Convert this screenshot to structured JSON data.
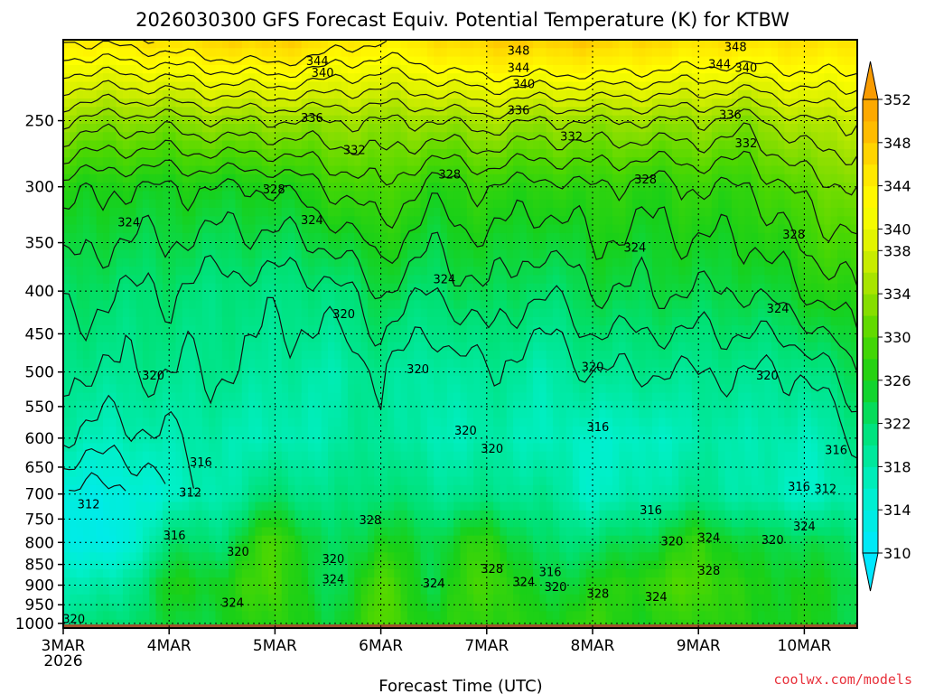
{
  "chart_data": {
    "type": "heatmap",
    "title": "2026030300 GFS Forecast Equiv. Potential Temperature (K) for KTBW",
    "xlabel": "Forecast Time (UTC)",
    "credit": "coolwx.com/models",
    "xlim": [
      0,
      7.5
    ],
    "x_ticks": [
      {
        "x": 0,
        "label": "3MAR",
        "sublabel": "2026"
      },
      {
        "x": 1,
        "label": "4MAR"
      },
      {
        "x": 2,
        "label": "5MAR"
      },
      {
        "x": 3,
        "label": "6MAR"
      },
      {
        "x": 4,
        "label": "7MAR"
      },
      {
        "x": 5,
        "label": "8MAR"
      },
      {
        "x": 6,
        "label": "9MAR"
      },
      {
        "x": 7,
        "label": "10MAR"
      }
    ],
    "ylim": [
      1013,
      200
    ],
    "y_scale": "log",
    "y_ticks": [
      250,
      300,
      350,
      400,
      450,
      500,
      550,
      600,
      650,
      700,
      750,
      800,
      850,
      900,
      950,
      1000
    ],
    "grid": true,
    "colorbar": {
      "levels": [
        310,
        312,
        314,
        316,
        318,
        320,
        322,
        324,
        326,
        328,
        330,
        332,
        334,
        336,
        338,
        340,
        342,
        344,
        346,
        348,
        350,
        352
      ],
      "labels": [
        310,
        314,
        318,
        322,
        326,
        330,
        334,
        338,
        340,
        344,
        348,
        352
      ],
      "colors": {
        "310": "#00e8ff",
        "316": "#00f0c8",
        "322": "#00e070",
        "326": "#18d018",
        "330": "#50d800",
        "334": "#98e000",
        "338": "#d8f000",
        "342": "#ffff00",
        "346": "#ffe000",
        "350": "#ffb000",
        "354": "#f59400"
      }
    },
    "profiles": [
      {
        "x": 0.0,
        "points": [
          [
            1000,
            320
          ],
          [
            900,
            318
          ],
          [
            800,
            314
          ],
          [
            700,
            314
          ],
          [
            600,
            318
          ],
          [
            500,
            320
          ],
          [
            400,
            323
          ],
          [
            300,
            327
          ],
          [
            250,
            334
          ],
          [
            200,
            344
          ]
        ]
      },
      {
        "x": 0.5,
        "points": [
          [
            1000,
            322
          ],
          [
            900,
            318
          ],
          [
            800,
            312
          ],
          [
            700,
            313
          ],
          [
            600,
            317
          ],
          [
            500,
            320
          ],
          [
            400,
            322
          ],
          [
            300,
            326
          ],
          [
            250,
            333
          ],
          [
            200,
            345
          ]
        ]
      },
      {
        "x": 1.0,
        "points": [
          [
            1000,
            324
          ],
          [
            900,
            326
          ],
          [
            800,
            322
          ],
          [
            700,
            316
          ],
          [
            600,
            318
          ],
          [
            500,
            320
          ],
          [
            400,
            322
          ],
          [
            300,
            326
          ],
          [
            250,
            333
          ],
          [
            200,
            346
          ]
        ]
      },
      {
        "x": 1.5,
        "points": [
          [
            1000,
            325
          ],
          [
            900,
            326
          ],
          [
            800,
            322
          ],
          [
            700,
            318
          ],
          [
            600,
            318
          ],
          [
            500,
            320
          ],
          [
            400,
            321
          ],
          [
            300,
            326
          ],
          [
            250,
            334
          ],
          [
            200,
            347
          ]
        ]
      },
      {
        "x": 2.0,
        "points": [
          [
            1000,
            328
          ],
          [
            900,
            330
          ],
          [
            800,
            330
          ],
          [
            700,
            322
          ],
          [
            600,
            317
          ],
          [
            500,
            319
          ],
          [
            400,
            321
          ],
          [
            300,
            326
          ],
          [
            250,
            334
          ],
          [
            200,
            348
          ]
        ]
      },
      {
        "x": 2.5,
        "points": [
          [
            1000,
            324
          ],
          [
            900,
            322
          ],
          [
            800,
            322
          ],
          [
            700,
            320
          ],
          [
            600,
            318
          ],
          [
            500,
            318
          ],
          [
            400,
            321
          ],
          [
            300,
            328
          ],
          [
            250,
            334
          ],
          [
            200,
            346
          ]
        ]
      },
      {
        "x": 3.0,
        "points": [
          [
            1000,
            330
          ],
          [
            900,
            330
          ],
          [
            800,
            326
          ],
          [
            700,
            322
          ],
          [
            600,
            320
          ],
          [
            500,
            320
          ],
          [
            400,
            324
          ],
          [
            300,
            330
          ],
          [
            250,
            334
          ],
          [
            200,
            344
          ]
        ]
      },
      {
        "x": 3.5,
        "points": [
          [
            1000,
            326
          ],
          [
            900,
            324
          ],
          [
            800,
            324
          ],
          [
            700,
            320
          ],
          [
            600,
            317
          ],
          [
            500,
            318
          ],
          [
            400,
            322
          ],
          [
            300,
            327
          ],
          [
            250,
            334
          ],
          [
            200,
            346
          ]
        ]
      },
      {
        "x": 4.0,
        "points": [
          [
            1000,
            328
          ],
          [
            900,
            330
          ],
          [
            800,
            328
          ],
          [
            700,
            320
          ],
          [
            600,
            318
          ],
          [
            500,
            320
          ],
          [
            400,
            324
          ],
          [
            300,
            328
          ],
          [
            250,
            335
          ],
          [
            200,
            348
          ]
        ]
      },
      {
        "x": 4.5,
        "points": [
          [
            1000,
            326
          ],
          [
            900,
            324
          ],
          [
            800,
            322
          ],
          [
            700,
            320
          ],
          [
            600,
            317
          ],
          [
            500,
            318
          ],
          [
            400,
            322
          ],
          [
            300,
            327
          ],
          [
            250,
            334
          ],
          [
            200,
            348
          ]
        ]
      },
      {
        "x": 5.0,
        "points": [
          [
            1000,
            328
          ],
          [
            900,
            326
          ],
          [
            800,
            322
          ],
          [
            700,
            316
          ],
          [
            600,
            316
          ],
          [
            500,
            320
          ],
          [
            400,
            324
          ],
          [
            300,
            328
          ],
          [
            250,
            334
          ],
          [
            200,
            348
          ]
        ]
      },
      {
        "x": 5.5,
        "points": [
          [
            1000,
            326
          ],
          [
            900,
            328
          ],
          [
            800,
            324
          ],
          [
            700,
            318
          ],
          [
            600,
            316
          ],
          [
            500,
            320
          ],
          [
            400,
            324
          ],
          [
            300,
            327
          ],
          [
            250,
            334
          ],
          [
            200,
            347
          ]
        ]
      },
      {
        "x": 6.0,
        "points": [
          [
            1000,
            328
          ],
          [
            900,
            330
          ],
          [
            800,
            328
          ],
          [
            700,
            320
          ],
          [
            600,
            318
          ],
          [
            500,
            320
          ],
          [
            400,
            324
          ],
          [
            300,
            328
          ],
          [
            250,
            334
          ],
          [
            200,
            346
          ]
        ]
      },
      {
        "x": 6.5,
        "points": [
          [
            1000,
            326
          ],
          [
            900,
            326
          ],
          [
            800,
            324
          ],
          [
            700,
            318
          ],
          [
            600,
            318
          ],
          [
            500,
            320
          ],
          [
            400,
            324
          ],
          [
            300,
            328
          ],
          [
            250,
            333
          ],
          [
            200,
            346
          ]
        ]
      },
      {
        "x": 7.0,
        "points": [
          [
            1000,
            326
          ],
          [
            900,
            326
          ],
          [
            800,
            324
          ],
          [
            700,
            316
          ],
          [
            600,
            317
          ],
          [
            500,
            320
          ],
          [
            400,
            326
          ],
          [
            300,
            331
          ],
          [
            250,
            336
          ],
          [
            200,
            346
          ]
        ]
      },
      {
        "x": 7.5,
        "points": [
          [
            1000,
            324
          ],
          [
            900,
            324
          ],
          [
            800,
            322
          ],
          [
            700,
            318
          ],
          [
            600,
            320
          ],
          [
            500,
            324
          ],
          [
            400,
            328
          ],
          [
            300,
            332
          ],
          [
            250,
            336
          ],
          [
            200,
            346
          ]
        ]
      }
    ],
    "contour_labels": [
      {
        "value": "348",
        "x": 4.3,
        "p": 206
      },
      {
        "value": "348",
        "x": 6.35,
        "p": 204
      },
      {
        "value": "344",
        "x": 2.4,
        "p": 212
      },
      {
        "value": "344",
        "x": 4.3,
        "p": 216
      },
      {
        "value": "344",
        "x": 6.2,
        "p": 214
      },
      {
        "value": "340",
        "x": 2.45,
        "p": 219
      },
      {
        "value": "340",
        "x": 4.35,
        "p": 226
      },
      {
        "value": "340",
        "x": 6.45,
        "p": 216
      },
      {
        "value": "336",
        "x": 2.35,
        "p": 248
      },
      {
        "value": "336",
        "x": 4.3,
        "p": 243
      },
      {
        "value": "336",
        "x": 6.3,
        "p": 246
      },
      {
        "value": "332",
        "x": 2.75,
        "p": 271
      },
      {
        "value": "332",
        "x": 4.8,
        "p": 261
      },
      {
        "value": "332",
        "x": 6.45,
        "p": 266
      },
      {
        "value": "328",
        "x": 1.99,
        "p": 302
      },
      {
        "value": "328",
        "x": 3.65,
        "p": 290
      },
      {
        "value": "328",
        "x": 5.5,
        "p": 294
      },
      {
        "value": "328",
        "x": 6.9,
        "p": 342
      },
      {
        "value": "324",
        "x": 0.62,
        "p": 331
      },
      {
        "value": "324",
        "x": 2.35,
        "p": 329
      },
      {
        "value": "324",
        "x": 3.6,
        "p": 387
      },
      {
        "value": "324",
        "x": 5.4,
        "p": 355
      },
      {
        "value": "324",
        "x": 6.75,
        "p": 420
      },
      {
        "value": "320",
        "x": 2.65,
        "p": 426
      },
      {
        "value": "320",
        "x": 0.85,
        "p": 505
      },
      {
        "value": "320",
        "x": 3.35,
        "p": 496
      },
      {
        "value": "320",
        "x": 5.0,
        "p": 493
      },
      {
        "value": "320",
        "x": 6.65,
        "p": 505
      },
      {
        "value": "320",
        "x": 3.8,
        "p": 588
      },
      {
        "value": "316",
        "x": 1.3,
        "p": 641
      },
      {
        "value": "316",
        "x": 5.05,
        "p": 582
      },
      {
        "value": "316",
        "x": 7.3,
        "p": 620
      },
      {
        "value": "316",
        "x": 6.95,
        "p": 686
      },
      {
        "value": "312",
        "x": 7.2,
        "p": 690
      },
      {
        "value": "312",
        "x": 1.2,
        "p": 697
      },
      {
        "value": "312",
        "x": 0.24,
        "p": 720
      },
      {
        "value": "316",
        "x": 1.05,
        "p": 785
      },
      {
        "value": "316",
        "x": 5.55,
        "p": 732
      },
      {
        "value": "328",
        "x": 2.9,
        "p": 752
      },
      {
        "value": "320",
        "x": 1.65,
        "p": 821
      },
      {
        "value": "320",
        "x": 2.55,
        "p": 837
      },
      {
        "value": "324",
        "x": 2.55,
        "p": 885
      },
      {
        "value": "324",
        "x": 1.6,
        "p": 945
      },
      {
        "value": "324",
        "x": 3.5,
        "p": 895
      },
      {
        "value": "328",
        "x": 4.05,
        "p": 860
      },
      {
        "value": "324",
        "x": 4.35,
        "p": 892
      },
      {
        "value": "316",
        "x": 4.6,
        "p": 868
      },
      {
        "value": "320",
        "x": 4.65,
        "p": 904
      },
      {
        "value": "328",
        "x": 5.05,
        "p": 922
      },
      {
        "value": "324",
        "x": 5.6,
        "p": 930
      },
      {
        "value": "320",
        "x": 5.75,
        "p": 797
      },
      {
        "value": "324",
        "x": 6.1,
        "p": 790
      },
      {
        "value": "328",
        "x": 6.1,
        "p": 865
      },
      {
        "value": "320",
        "x": 6.7,
        "p": 794
      },
      {
        "value": "324",
        "x": 7.0,
        "p": 765
      },
      {
        "value": "320",
        "x": 4.05,
        "p": 618
      },
      {
        "value": "320",
        "x": 0.1,
        "p": 988
      }
    ]
  }
}
